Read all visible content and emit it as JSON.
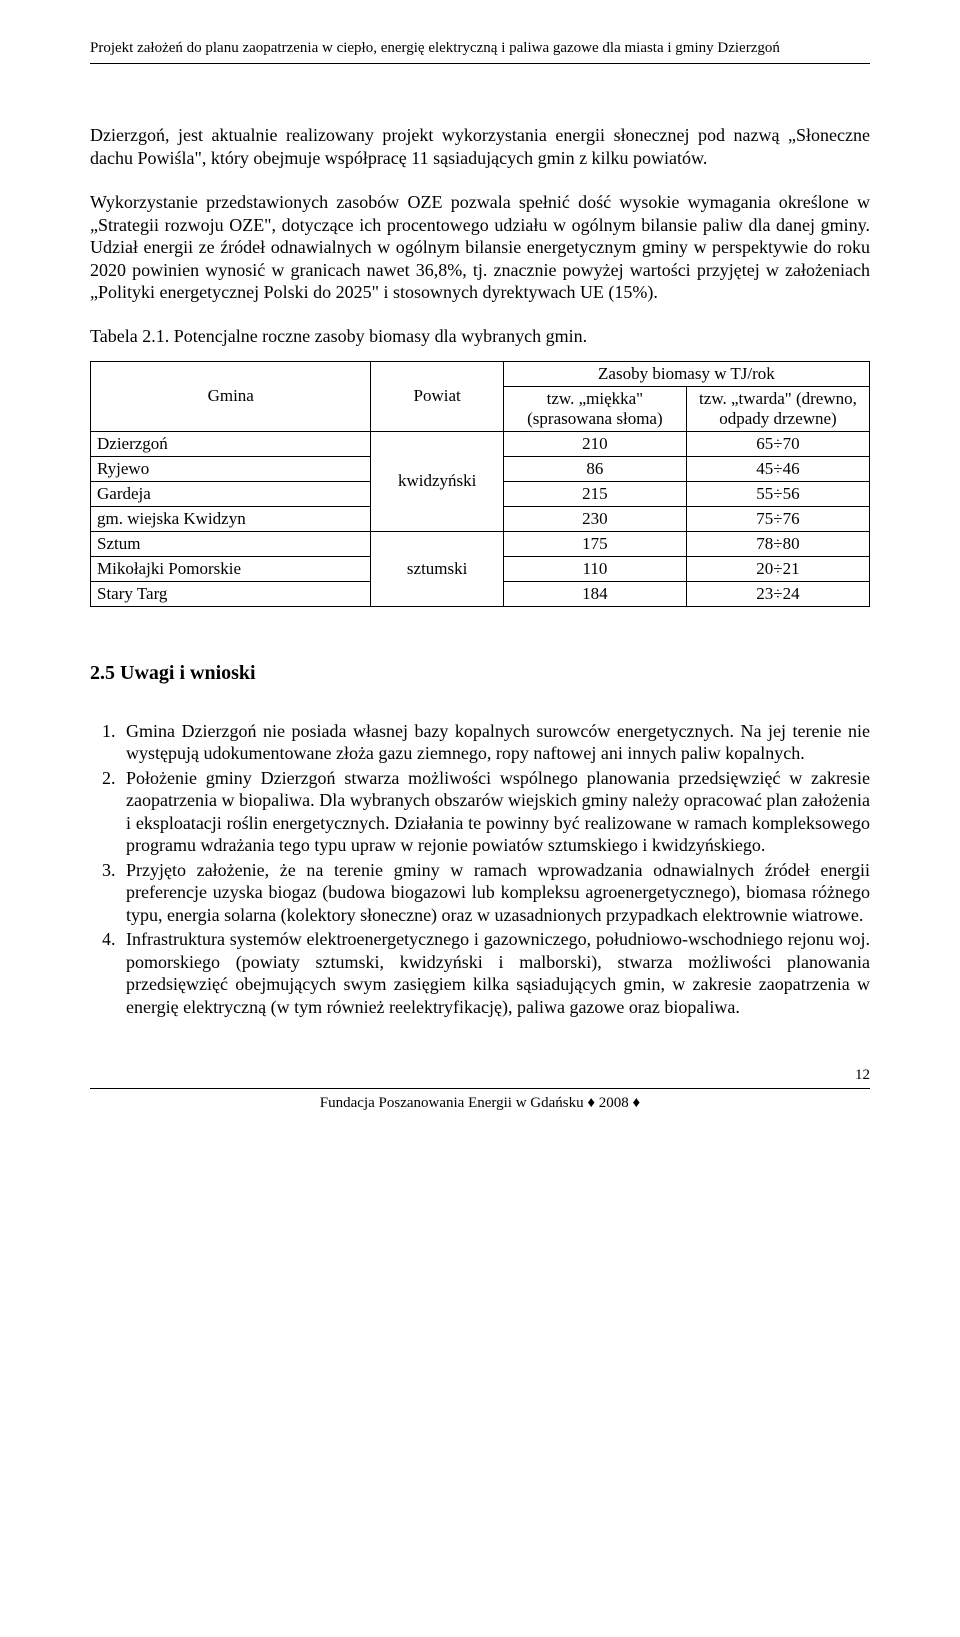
{
  "header": "Projekt założeń do planu zaopatrzenia w ciepło, energię elektryczną i paliwa gazowe dla miasta i gminy Dzierzgoń",
  "paragraphs": {
    "p1": "Dzierzgoń, jest aktualnie realizowany projekt wykorzystania energii słonecznej pod nazwą „Słoneczne dachu Powiśla\", który obejmuje współpracę 11 sąsiadujących gmin z kilku powiatów.",
    "p2": "Wykorzystanie przedstawionych zasobów OZE pozwala spełnić dość wysokie wymagania określone w „Strategii rozwoju OZE\", dotyczące ich procentowego udziału w ogólnym bilansie paliw dla danej gminy. Udział energii ze źródeł odnawialnych w ogólnym bilansie energetycznym gminy w perspektywie do roku 2020 powinien wynosić w granicach nawet 36,8%, tj. znacznie powyżej wartości przyjętej w założeniach „Polityki energetycznej Polski do 2025\" i stosownych dyrektywach UE (15%).",
    "tableCaption": "Tabela 2.1.  Potencjalne roczne zasoby biomasy dla wybranych gmin."
  },
  "table": {
    "head": {
      "gmina": "Gmina",
      "powiat": "Powiat",
      "zasoby": "Zasoby biomasy w TJ/rok",
      "miekka": "tzw. „miękka\" (sprasowana słoma)",
      "twarda": "tzw. „twarda\" (drewno, odpady drzewne)"
    },
    "powiaty": {
      "kw": "kwidzyński",
      "sz": "sztumski"
    },
    "rows": [
      {
        "gmina": "Dzierzgoń",
        "v1": "210",
        "v2": "65÷70"
      },
      {
        "gmina": "Ryjewo",
        "v1": "86",
        "v2": "45÷46"
      },
      {
        "gmina": "Gardeja",
        "v1": "215",
        "v2": "55÷56"
      },
      {
        "gmina": "gm. wiejska Kwidzyn",
        "v1": "230",
        "v2": "75÷76"
      },
      {
        "gmina": "Sztum",
        "v1": "175",
        "v2": "78÷80"
      },
      {
        "gmina": "Mikołajki Pomorskie",
        "v1": "110",
        "v2": "20÷21"
      },
      {
        "gmina": "Stary Targ",
        "v1": "184",
        "v2": "23÷24"
      }
    ]
  },
  "section": {
    "heading": "2.5 Uwagi i wnioski",
    "items": [
      "Gmina Dzierzgoń nie posiada własnej bazy kopalnych surowców energetycznych. Na jej terenie nie występują udokumentowane złoża gazu ziemnego, ropy naftowej ani innych paliw kopalnych.",
      "Położenie gminy Dzierzgoń stwarza możliwości wspólnego planowania przedsięwzięć w zakresie zaopatrzenia w biopaliwa. Dla wybranych obszarów wiejskich gminy należy opracować plan założenia i eksploatacji roślin energetycznych. Działania te powinny być realizowane w ramach kompleksowego programu wdrażania tego typu upraw w rejonie powiatów sztumskiego i kwidzyńskiego.",
      "Przyjęto założenie, że na terenie gminy w ramach wprowadzania odnawialnych źródeł energii preferencje uzyska biogaz (budowa biogazowi lub kompleksu agroenergetycznego), biomasa różnego typu, energia solarna (kolektory słoneczne) oraz w uzasadnionych przypadkach elektrownie wiatrowe.",
      "Infrastruktura systemów elektroenergetycznego i gazowniczego, południowo-wschodniego rejonu woj. pomorskiego (powiaty sztumski, kwidzyński i malborski), stwarza możliwości planowania przedsięwzięć obejmujących swym zasięgiem kilka sąsiadujących gmin, w zakresie zaopatrzenia w energię elektryczną (w tym również reelektryfikację), paliwa gazowe oraz biopaliwa."
    ]
  },
  "footer": {
    "text": "Fundacja Poszanowania Energii w Gdańsku  ♦ 2008 ♦",
    "pageNum": "12"
  }
}
